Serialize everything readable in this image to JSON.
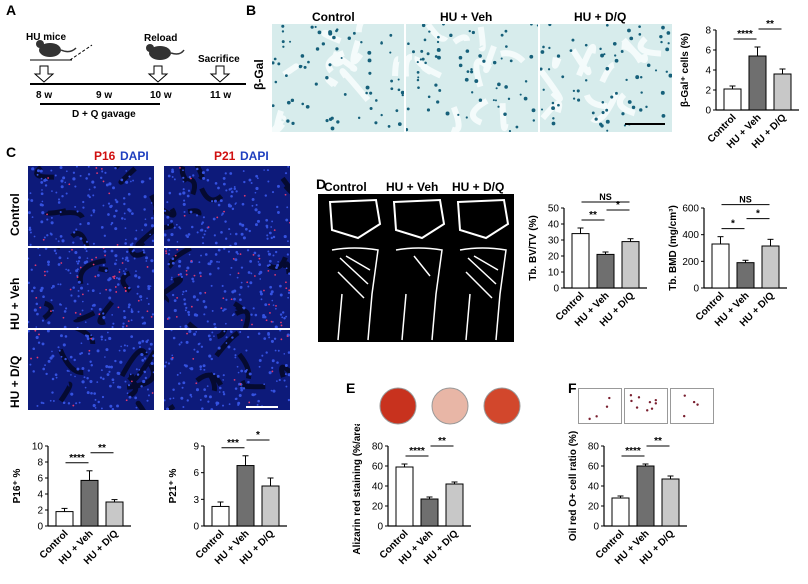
{
  "panels": {
    "A": "A",
    "B": "B",
    "C": "C",
    "D": "D",
    "E": "E",
    "F": "F"
  },
  "panelA": {
    "hu_mice": "HU mice",
    "reload": "Reload",
    "sacrifice": "Sacrifice",
    "weeks": [
      "8 w",
      "9 w",
      "10 w",
      "11 w"
    ],
    "gavage": "D + Q gavage"
  },
  "panelB": {
    "row_label": "β-Gal",
    "columns": [
      "Control",
      "HU + Veh",
      "HU + D/Q"
    ]
  },
  "panelC": {
    "left_title_a": "P16",
    "left_title_b": "DAPI",
    "right_title_a": "P21",
    "right_title_b": "DAPI",
    "rows": [
      "Control",
      "HU + Veh",
      "HU + D/Q"
    ]
  },
  "panelD": {
    "columns": [
      "Control",
      "HU + Veh",
      "HU + D/Q"
    ]
  },
  "groups": [
    "Control",
    "HU + Veh",
    "HU + D/Q"
  ],
  "colors": {
    "control": "#ffffff",
    "veh": "#6f6f6f",
    "dq": "#c8c8c8",
    "blue_stain": "#1a2a8a",
    "bgal": "#d7ecec"
  },
  "chart_data": [
    {
      "id": "bgal",
      "type": "bar",
      "title": "",
      "ylabel": "β-Gal⁺ cells (%)",
      "categories": [
        "Control",
        "HU + Veh",
        "HU + D/Q"
      ],
      "values": [
        2.1,
        5.4,
        3.6
      ],
      "errors": [
        0.3,
        0.9,
        0.5
      ],
      "ylim": [
        0,
        8
      ],
      "yticks": [
        0,
        2,
        4,
        6,
        8
      ],
      "sig": [
        "****",
        "**"
      ]
    },
    {
      "id": "p16",
      "type": "bar",
      "title": "",
      "ylabel": "P16⁺ %",
      "categories": [
        "Control",
        "HU + Veh",
        "HU + D/Q"
      ],
      "values": [
        1.8,
        5.7,
        3.0
      ],
      "errors": [
        0.4,
        1.2,
        0.3
      ],
      "ylim": [
        0,
        10
      ],
      "yticks": [
        0,
        2,
        4,
        6,
        8,
        10
      ],
      "sig": [
        "****",
        "**"
      ]
    },
    {
      "id": "p21",
      "type": "bar",
      "title": "",
      "ylabel": "P21⁺ %",
      "categories": [
        "Control",
        "HU + Veh",
        "HU + D/Q"
      ],
      "values": [
        2.2,
        6.8,
        4.5
      ],
      "errors": [
        0.5,
        1.1,
        0.9
      ],
      "ylim": [
        0,
        9
      ],
      "yticks": [
        0,
        3,
        6,
        9
      ],
      "sig": [
        "***",
        "*"
      ]
    },
    {
      "id": "bvtv",
      "type": "bar",
      "title": "",
      "ylabel": "Tb. BV/TV (%)",
      "categories": [
        "Control",
        "HU + Veh",
        "HU + D/Q"
      ],
      "values": [
        34,
        21,
        29
      ],
      "errors": [
        3.5,
        1.5,
        1.8
      ],
      "ylim": [
        0,
        50
      ],
      "yticks": [
        0,
        10,
        20,
        30,
        40,
        50
      ],
      "sig": [
        "**",
        "*",
        "NS"
      ]
    },
    {
      "id": "bmd",
      "type": "bar",
      "title": "",
      "ylabel": "Tb. BMD (mg/cm³)",
      "categories": [
        "Control",
        "HU + Veh",
        "HU + D/Q"
      ],
      "values": [
        330,
        190,
        315
      ],
      "errors": [
        55,
        18,
        50
      ],
      "ylim": [
        0,
        600
      ],
      "yticks": [
        0,
        200,
        400,
        600
      ],
      "sig": [
        "*",
        "*",
        "NS"
      ]
    },
    {
      "id": "alizarin",
      "type": "bar",
      "title": "",
      "ylabel": "Alizarin red staining (%/area)",
      "categories": [
        "Control",
        "HU + Veh",
        "HU + D/Q"
      ],
      "values": [
        59,
        27,
        42
      ],
      "errors": [
        3,
        2,
        2
      ],
      "ylim": [
        0,
        80
      ],
      "yticks": [
        0,
        20,
        40,
        60,
        80
      ],
      "sig": [
        "****",
        "**"
      ]
    },
    {
      "id": "oilred",
      "type": "bar",
      "title": "",
      "ylabel": "Oil red O+ cell ratio (%)",
      "categories": [
        "Control",
        "HU + Veh",
        "HU + D/Q"
      ],
      "values": [
        28,
        60,
        47
      ],
      "errors": [
        2,
        2,
        3
      ],
      "ylim": [
        0,
        80
      ],
      "yticks": [
        0,
        20,
        40,
        60,
        80
      ],
      "sig": [
        "****",
        "**"
      ]
    }
  ]
}
